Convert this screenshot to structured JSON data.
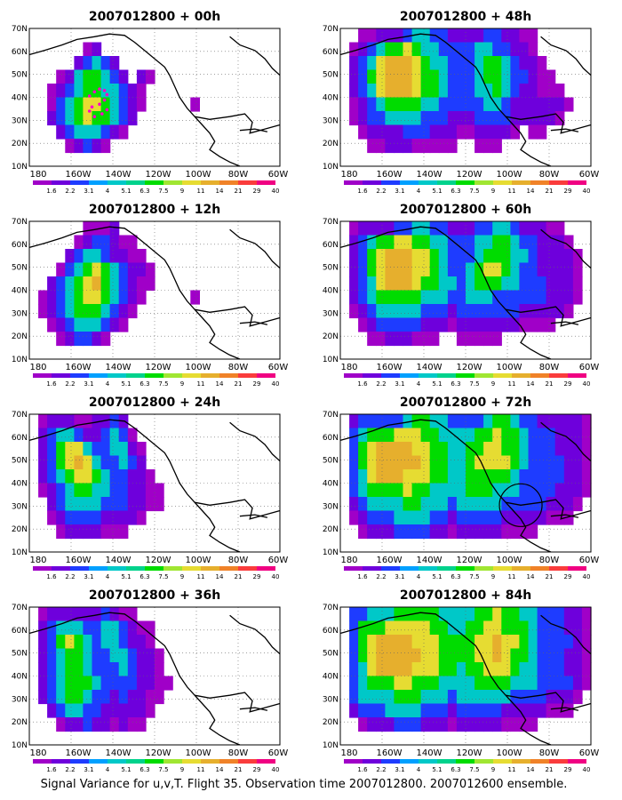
{
  "panels": [
    {
      "title": "2007012800 + 00h",
      "field": [
        "............................",
        "......ab....................",
        ".....bcdcb..................",
        "...abdeedcb.ba..............",
        "..abcdeeddcba...............",
        "..acdeffedcba.....a.........",
        "..bcdefeedcb................",
        "...bcdddcba.................",
        "....abcba...................",
        "............................"
      ]
    },
    {
      "title": "2007012800 + 48h",
      "field": [
        "..aabbbcddccbbbbccbbaa......",
        ".abcdeefeddccccddccbba......",
        ".bcdfgggfeddcccdeedcbba.....",
        ".bcefgggfeedcccdeedccbaa....",
        ".bcdfgggfeedcccddedcbbaaa...",
        ".abcdeeeeddcccccddcbbbbbba..",
        ".abccddddcccbbbccccbbbbba...",
        "..abbbbcccbbbaabbbba.aa.....",
        "...aabbbaaaaa..aaa..........",
        "............................"
      ]
    },
    {
      "title": "2007012800 + 12h",
      "field": [
        "......aaab..................",
        ".....abccbaa................",
        "....bcddcbbaa...............",
        "...acdefedcbba..............",
        "..bcdefgedcbaa..............",
        ".abcdeffedcba.....a.........",
        ".abcdeeedcba................",
        "..abcdddcba.................",
        "...abccba...................",
        "............................"
      ]
    },
    {
      "title": "2007012800 + 60h",
      "field": [
        ".abbbbccddccbbbccddcbbbaa...",
        ".bcdeeffeeddcccddeedccbbba..",
        ".bcefgggffedcccdeeeddcbbbba.",
        ".bcefgggffedccdeffedccbbbba.",
        ".bcdfgggfeeddcdeeeddcccbbba.",
        ".bcdeeeeedddccdddccccccbbba.",
        ".abcdddddcccbcccccccbbbbba..",
        "..abcccccbbbabbbbbbbaaaa....",
        "...aabbbaaa..aaaaa..........",
        "............................"
      ]
    },
    {
      "title": "2007012800 + 24h",
      "field": [
        ".abbbaabbcb.................",
        ".bcddcbbcdca................",
        ".bceffdccddba...............",
        ".bcefgfdccdcb...............",
        ".bcdeffedccbba..............",
        ".abcdeeddccbbaa.............",
        "..bcddddcccbbaa.............",
        "..abccccbbbba...............",
        "...abbbbaaa.................",
        "............................"
      ]
    },
    {
      "title": "2007012800 + 72h",
      "field": [
        ".bcccccdeeddccccdeedccbbbbba",
        ".cdeeefffeeddddeefeedcccbbba",
        ".cefggggffeeddeeffeedcccbbba",
        ".cefgggggfeeddeffffedccccbba",
        ".cdfgggfffeeddeeeeedcccccbba",
        ".cdeeeefeeddddeeedddccccbbba",
        ".bcddddeedddcdddddcccccbbba.",
        ".abcccddddccbcccccbbbbbaaa..",
        "..abbbccccbbabbbbbaaaa......",
        "............................"
      ]
    },
    {
      "title": "2007012800 + 36h",
      "field": [
        ".abbbbbbcbaa................",
        ".bcdddccddcbaa..............",
        ".bcefedcddcbba..............",
        ".bcdeedccddcbba.............",
        ".bcdeedcccdcbba.............",
        ".bcdeeedccccbbaa............",
        ".bcdeedccbcbbaa.............",
        "..bcddccbbbbba..............",
        "...abbcbbabaa...............",
        "............................"
      ]
    },
    {
      "title": "2007012800 + 84h",
      "field": [
        ".ccdddeeeeeddddeefeeddcccbba",
        ".ceeefffffeeddeeffeeedcccbba",
        ".cefggggfffeeeeffgffedccccba",
        ".cefgggggffeeeeffgfeedcccbba",
        ".cdfggggfffeedeefffeddcccbba",
        ".cdeeeffeeeddddeeeedddccccba",
        ".cddddeeedddcddddddccccbbba.",
        ".bcccddddcccbcccccbbbbbaaa..",
        "..abbbcccbbbabbbbbaaaa......",
        "............................"
      ]
    }
  ],
  "lat_labels": [
    "70N",
    "60N",
    "50N",
    "40N",
    "30N",
    "20N",
    "10N"
  ],
  "lon_labels": [
    "180",
    "160W",
    "140W",
    "120W",
    "100W",
    "80W",
    "60W"
  ],
  "colorbar": {
    "labels": [
      "1.6",
      "2.2",
      "3.1",
      "4",
      "5.1",
      "6.3",
      "7.5",
      "9",
      "11",
      "14",
      "21",
      "29",
      "40"
    ],
    "colors": [
      "#a000c8",
      "#6e00dc",
      "#1e3cff",
      "#00a0ff",
      "#00c8c8",
      "#00d28c",
      "#00dc00",
      "#a0e632",
      "#e6dc32",
      "#e6af2d",
      "#f08228",
      "#fa3c3c",
      "#f00082"
    ]
  },
  "field_colors": {
    "a": "#a000c8",
    "b": "#6e00dc",
    "c": "#1e3cff",
    "d": "#00c8c8",
    "e": "#00dc00",
    "f": "#e6dc32",
    "g": "#e6af2d"
  },
  "caption": "Signal Variance for u,v,T. Flight 35. Observation time 2007012800. 2007012600 ensemble."
}
